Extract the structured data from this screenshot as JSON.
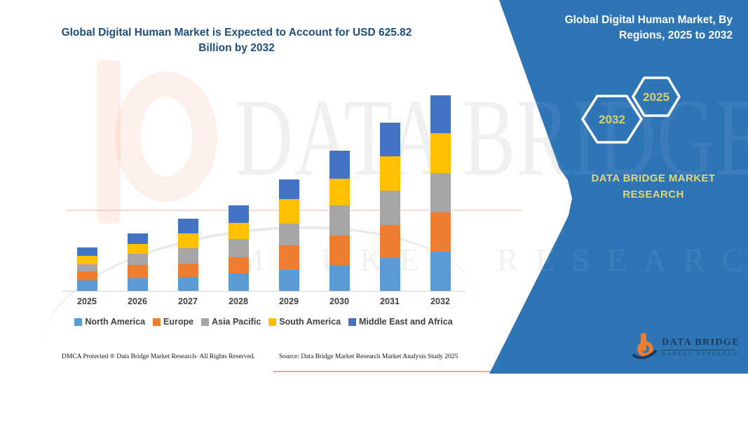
{
  "title": {
    "text": "Global Digital Human Market is Expected to Account for USD 625.82 Billion by 2032"
  },
  "panel": {
    "heading": "Global Digital Human Market, By Regions, 2025 to 2032",
    "hexagons": [
      {
        "label": "2032"
      },
      {
        "label": "2025"
      }
    ],
    "brand": "DATA BRIDGE MARKET RESEARCH",
    "logo": {
      "name": "DATA BRIDGE",
      "sub": "MARKET RESEARCH"
    }
  },
  "watermark": {
    "line1": "DATA BRIDGE",
    "line2": "MARKET RESEARCH"
  },
  "footer": {
    "dmca": "DMCA Protected ® Data Bridge Market Research-  All Rights Reserved.",
    "source": "Source: Data Bridge Market Research  Market Analysis Study 2025"
  },
  "chart_data": {
    "type": "bar",
    "stacked": true,
    "unit": "USD Billion",
    "values_estimated_from_pixels": true,
    "categories": [
      "2025",
      "2026",
      "2027",
      "2028",
      "2029",
      "2030",
      "2031",
      "2032"
    ],
    "series": [
      {
        "name": "North America",
        "color": "#5B9BD5",
        "values": [
          34,
          41,
          45,
          57,
          68,
          83,
          106,
          125
        ]
      },
      {
        "name": "Europe",
        "color": "#ED7D31",
        "values": [
          29,
          41,
          43,
          51,
          79,
          95,
          106,
          126
        ]
      },
      {
        "name": "Asia Pacific",
        "color": "#A5A5A5",
        "values": [
          23,
          36,
          48,
          58,
          68,
          95,
          110,
          127
        ]
      },
      {
        "name": "South America",
        "color": "#FFC000",
        "values": [
          26,
          32,
          49,
          51,
          79,
          87,
          109,
          127
        ]
      },
      {
        "name": "Middle East and Africa",
        "color": "#4472C4",
        "values": [
          27,
          34,
          47,
          57,
          62,
          88,
          107,
          121
        ]
      }
    ],
    "totals": [
      139,
      184,
      232,
      274,
      356,
      448,
      538,
      626
    ],
    "highlight_total_2032": 625.82,
    "title": "Global Digital Human Market is Expected to Account for USD 625.82 Billion by 2032",
    "xlabel": "",
    "ylabel": "",
    "ylim": [
      0,
      660
    ],
    "grid": false,
    "legend_position": "bottom"
  }
}
